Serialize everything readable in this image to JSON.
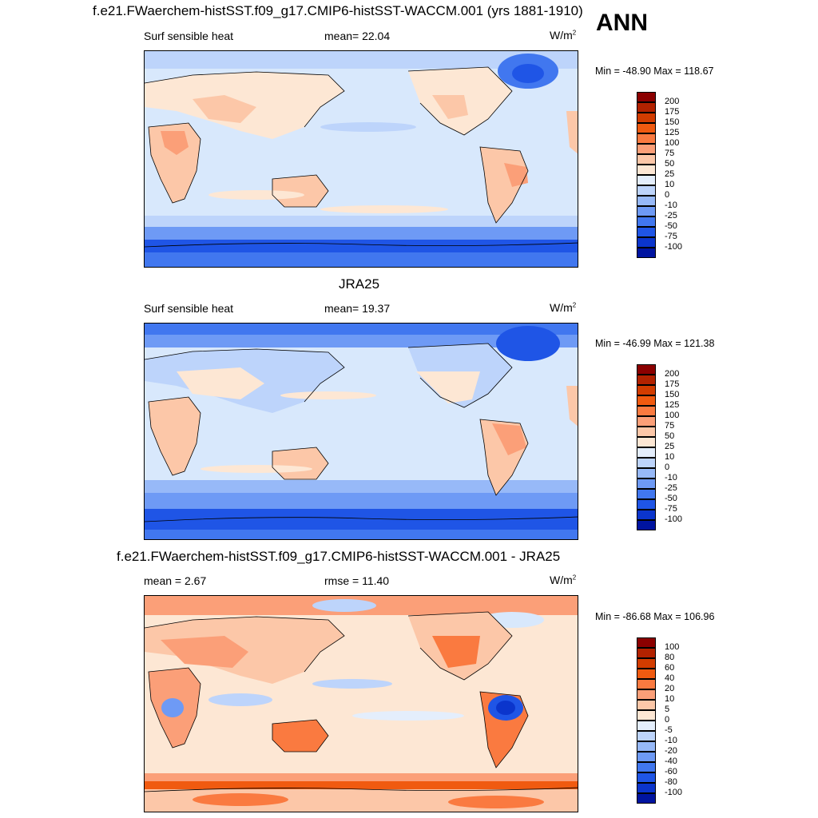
{
  "season": "ANN",
  "panels": [
    {
      "title": "f.e21.FWaerchem-histSST.f09_g17.CMIP6-histSST-WACCM.001 (yrs 1881-1910)",
      "left_label": "Surf sensible heat",
      "center_label": "mean=  22.04",
      "units": "W/m",
      "units_sup": "2",
      "minmax": "Min = -48.90 Max = 118.67",
      "colorbar": {
        "colors": [
          "#8b0000",
          "#b22200",
          "#d23c00",
          "#f05a10",
          "#fa7a40",
          "#fb9f78",
          "#fcc7a8",
          "#fde7d4",
          "#e4eefc",
          "#bdd4fb",
          "#97b9f8",
          "#6e9af5",
          "#4177ef",
          "#1f55e6",
          "#0b35cc",
          "#0014a0"
        ],
        "labels": [
          "200",
          "175",
          "150",
          "125",
          "100",
          "75",
          "50",
          "25",
          "10",
          "0",
          "-10",
          "-25",
          "-50",
          "-75",
          "-100"
        ]
      }
    },
    {
      "title": "JRA25",
      "left_label": "Surf sensible heat",
      "center_label": "mean=  19.37",
      "units": "W/m",
      "units_sup": "2",
      "minmax": "Min = -46.99 Max = 121.38",
      "colorbar": {
        "colors": [
          "#8b0000",
          "#b22200",
          "#d23c00",
          "#f05a10",
          "#fa7a40",
          "#fb9f78",
          "#fcc7a8",
          "#fde7d4",
          "#e4eefc",
          "#bdd4fb",
          "#97b9f8",
          "#6e9af5",
          "#4177ef",
          "#1f55e6",
          "#0b35cc",
          "#0014a0"
        ],
        "labels": [
          "200",
          "175",
          "150",
          "125",
          "100",
          "75",
          "50",
          "25",
          "10",
          "0",
          "-10",
          "-25",
          "-50",
          "-75",
          "-100"
        ]
      }
    },
    {
      "title": "f.e21.FWaerchem-histSST.f09_g17.CMIP6-histSST-WACCM.001 - JRA25",
      "left_label": "mean =   2.67",
      "center_label": "rmse =  11.40",
      "units": "W/m",
      "units_sup": "2",
      "minmax": "Min = -86.68 Max = 106.96",
      "colorbar": {
        "colors": [
          "#8b0000",
          "#b22200",
          "#d23c00",
          "#f05a10",
          "#fa7a40",
          "#fb9f78",
          "#fcc7a8",
          "#fde7d4",
          "#e4eefc",
          "#bdd4fb",
          "#97b9f8",
          "#6e9af5",
          "#4177ef",
          "#1f55e6",
          "#0b35cc",
          "#0014a0"
        ],
        "labels": [
          "100",
          "80",
          "60",
          "40",
          "20",
          "10",
          "5",
          "0",
          "-5",
          "-10",
          "-20",
          "-40",
          "-60",
          "-80",
          "-100"
        ]
      }
    }
  ]
}
